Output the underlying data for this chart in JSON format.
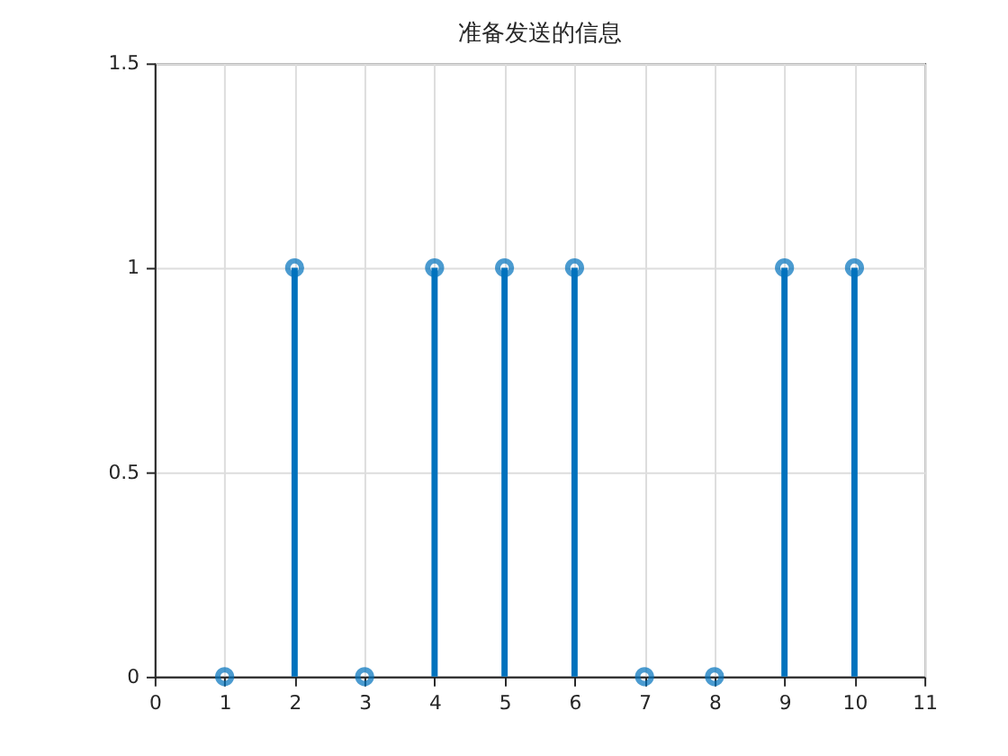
{
  "chart_data": {
    "type": "lollipop",
    "title": "准备发送的信息",
    "x": [
      1,
      2,
      3,
      4,
      5,
      6,
      7,
      8,
      9,
      10
    ],
    "values": [
      0,
      1,
      0,
      1,
      1,
      1,
      0,
      0,
      1,
      1
    ],
    "color": "#0072bd",
    "xlim": [
      0,
      11
    ],
    "xticks": [
      0,
      1,
      2,
      3,
      4,
      5,
      6,
      7,
      8,
      9,
      10,
      11
    ],
    "ylim": [
      0,
      1.5
    ],
    "yticks": [
      0,
      0.5,
      1,
      1.5
    ],
    "grid": true,
    "marker": "circle"
  }
}
